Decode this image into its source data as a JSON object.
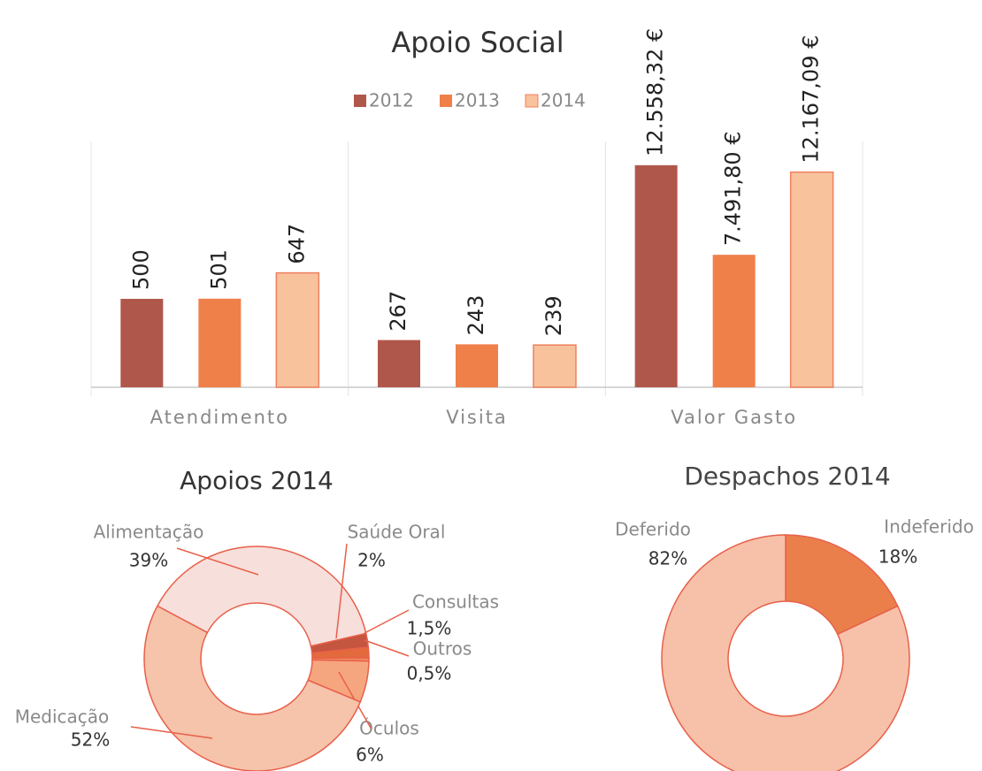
{
  "chart_data": [
    {
      "type": "bar",
      "title": "Apoio Social",
      "categories": [
        "Atendimento",
        "Visita"
      ],
      "series": [
        {
          "name": "2012",
          "color": "#b0574b",
          "values": [
            500,
            267
          ]
        },
        {
          "name": "2013",
          "color": "#f0804a",
          "values": [
            501,
            243
          ]
        },
        {
          "name": "2014",
          "color": "#f8c29c",
          "values": [
            647,
            239
          ]
        }
      ],
      "ylim": [
        0,
        1400
      ]
    },
    {
      "type": "bar",
      "categories": [
        "Valor Gasto"
      ],
      "series": [
        {
          "color": "#b0574b",
          "values": [
            12558.32
          ],
          "value_labels": [
            "12.558,32 €"
          ]
        },
        {
          "color": "#f0804a",
          "values": [
            7491.8
          ],
          "value_labels": [
            "7.491,80 €"
          ]
        },
        {
          "color": "#f8c29c",
          "values": [
            12167.09
          ],
          "value_labels": [
            "12.167,09 €"
          ]
        }
      ],
      "ylim": [
        0,
        14000
      ]
    },
    {
      "type": "pie",
      "title": "Apoios 2014",
      "categories": [
        "Alimentação",
        "Saúde Oral",
        "Consultas",
        "Outros",
        "Óculos",
        "Medicação"
      ],
      "values": [
        39,
        2,
        1.5,
        0.5,
        6,
        52
      ],
      "value_labels": [
        "39%",
        "2%",
        "1,5%",
        "0,5%",
        "6%",
        "52%"
      ],
      "colors": [
        "#f7dfdb",
        "#c4553f",
        "#e26a3c",
        "#f08a5c",
        "#f6a67f",
        "#f6c3ab"
      ]
    },
    {
      "type": "pie",
      "title": "Despachos 2014",
      "categories": [
        "Indeferido",
        "Deferido"
      ],
      "values": [
        18,
        82
      ],
      "value_labels": [
        "18%",
        "82%"
      ],
      "colors": [
        "#ea7f4c",
        "#f6c1a8"
      ]
    }
  ]
}
